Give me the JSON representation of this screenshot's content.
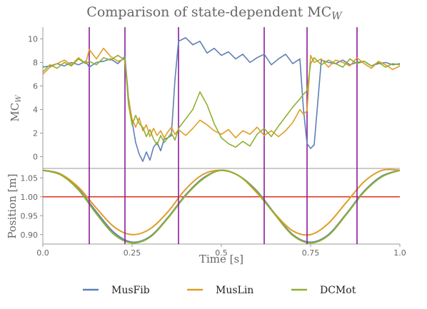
{
  "chart_data": [
    {
      "type": "line",
      "title": "Comparison of state-dependent MC",
      "title_subscript": "W",
      "ylabel": "MC",
      "ylabel_subscript": "W",
      "xlim": [
        0,
        1
      ],
      "ylim": [
        -1,
        11
      ],
      "yticks": [
        "0",
        "2",
        "4",
        "6",
        "8",
        "10"
      ],
      "vlines": [
        0.13,
        0.23,
        0.38,
        0.62,
        0.74,
        0.88
      ],
      "vline_color": "#8B1A9B",
      "series": [
        {
          "name": "MusFib",
          "color": "#5E81B5",
          "x": [
            0.0,
            0.02,
            0.04,
            0.06,
            0.08,
            0.1,
            0.12,
            0.13,
            0.15,
            0.17,
            0.19,
            0.21,
            0.23,
            0.24,
            0.25,
            0.26,
            0.27,
            0.28,
            0.29,
            0.3,
            0.31,
            0.32,
            0.33,
            0.34,
            0.35,
            0.36,
            0.37,
            0.38,
            0.4,
            0.42,
            0.44,
            0.46,
            0.48,
            0.5,
            0.52,
            0.54,
            0.56,
            0.58,
            0.6,
            0.62,
            0.64,
            0.66,
            0.68,
            0.7,
            0.72,
            0.73,
            0.74,
            0.75,
            0.76,
            0.78,
            0.8,
            0.82,
            0.84,
            0.86,
            0.88,
            0.9,
            0.92,
            0.94,
            0.96,
            0.98,
            1.0
          ],
          "y": [
            7.6,
            7.7,
            7.9,
            7.7,
            8.0,
            7.8,
            8.1,
            7.6,
            8.0,
            8.1,
            8.3,
            7.9,
            8.5,
            5.0,
            3.0,
            1.2,
            0.2,
            -0.4,
            0.4,
            -0.3,
            0.8,
            1.2,
            0.5,
            1.5,
            1.6,
            1.8,
            6.5,
            9.8,
            10.1,
            9.5,
            9.8,
            8.8,
            9.2,
            8.6,
            8.9,
            8.3,
            8.7,
            8.0,
            8.4,
            8.7,
            7.8,
            8.3,
            8.7,
            7.9,
            8.3,
            4.0,
            1.1,
            0.7,
            1.0,
            8.2,
            8.0,
            7.9,
            8.2,
            7.8,
            8.0,
            8.1,
            7.7,
            7.9,
            8.0,
            7.8,
            7.9
          ]
        },
        {
          "name": "MusLin",
          "color": "#E19C24",
          "x": [
            0.0,
            0.02,
            0.04,
            0.06,
            0.08,
            0.1,
            0.12,
            0.13,
            0.15,
            0.17,
            0.19,
            0.21,
            0.23,
            0.24,
            0.25,
            0.26,
            0.27,
            0.28,
            0.29,
            0.3,
            0.31,
            0.32,
            0.33,
            0.34,
            0.35,
            0.36,
            0.37,
            0.38,
            0.4,
            0.42,
            0.44,
            0.46,
            0.48,
            0.5,
            0.52,
            0.54,
            0.56,
            0.58,
            0.6,
            0.62,
            0.64,
            0.66,
            0.68,
            0.7,
            0.72,
            0.73,
            0.74,
            0.75,
            0.76,
            0.78,
            0.8,
            0.82,
            0.84,
            0.86,
            0.88,
            0.9,
            0.92,
            0.94,
            0.96,
            0.98,
            1.0
          ],
          "y": [
            7.0,
            7.6,
            7.9,
            8.2,
            7.8,
            8.4,
            7.9,
            9.1,
            8.3,
            9.2,
            8.5,
            8.1,
            8.3,
            4.8,
            3.2,
            2.5,
            3.3,
            2.2,
            2.7,
            1.7,
            2.4,
            1.8,
            2.2,
            1.6,
            2.1,
            2.5,
            1.9,
            2.3,
            1.8,
            2.4,
            3.1,
            2.7,
            2.2,
            1.9,
            2.3,
            1.6,
            2.2,
            1.9,
            2.5,
            1.8,
            2.2,
            1.7,
            2.2,
            2.9,
            4.0,
            3.6,
            3.9,
            8.6,
            8.0,
            8.3,
            7.6,
            8.2,
            8.0,
            7.7,
            8.4,
            7.9,
            7.5,
            8.1,
            7.8,
            7.4,
            7.7
          ]
        },
        {
          "name": "DCMot",
          "color": "#8FB032",
          "x": [
            0.0,
            0.02,
            0.04,
            0.06,
            0.08,
            0.1,
            0.12,
            0.13,
            0.15,
            0.17,
            0.19,
            0.21,
            0.23,
            0.24,
            0.25,
            0.26,
            0.27,
            0.28,
            0.29,
            0.3,
            0.31,
            0.32,
            0.33,
            0.34,
            0.35,
            0.36,
            0.37,
            0.38,
            0.4,
            0.42,
            0.44,
            0.46,
            0.48,
            0.5,
            0.52,
            0.54,
            0.56,
            0.58,
            0.6,
            0.62,
            0.64,
            0.66,
            0.68,
            0.7,
            0.72,
            0.73,
            0.74,
            0.75,
            0.76,
            0.78,
            0.8,
            0.82,
            0.84,
            0.86,
            0.88,
            0.9,
            0.92,
            0.94,
            0.96,
            0.98,
            1.0
          ],
          "y": [
            7.2,
            7.8,
            7.5,
            8.0,
            7.7,
            8.3,
            7.9,
            8.1,
            7.8,
            8.4,
            8.2,
            8.6,
            8.2,
            4.4,
            2.7,
            3.5,
            2.8,
            2.5,
            1.7,
            2.3,
            1.5,
            1.0,
            1.8,
            1.2,
            1.6,
            2.0,
            1.4,
            2.4,
            3.2,
            4.0,
            5.5,
            4.4,
            2.8,
            1.6,
            1.1,
            0.8,
            1.3,
            0.9,
            1.9,
            2.4,
            1.7,
            2.6,
            3.4,
            4.2,
            4.9,
            5.3,
            5.6,
            7.9,
            8.4,
            7.8,
            8.2,
            7.9,
            7.6,
            8.3,
            7.9,
            8.1,
            7.7,
            8.0,
            7.6,
            7.9,
            7.8
          ]
        }
      ]
    },
    {
      "type": "line",
      "xlabel": "Time [s]",
      "ylabel": "Position [m]",
      "xlim": [
        0,
        1
      ],
      "ylim": [
        0.875,
        1.075
      ],
      "xticks": [
        "0.0",
        "0.25",
        "0.5",
        "0.75",
        "1.0"
      ],
      "yticks": [
        "0.90",
        "0.95",
        "1.00",
        "1.05"
      ],
      "hline": 1.0,
      "hline_color": "#E0301E",
      "vlines": [
        0.13,
        0.23,
        0.38,
        0.62,
        0.74,
        0.88
      ],
      "series": [
        {
          "name": "MusFib",
          "color": "#5E81B5",
          "x": [
            0.0,
            0.05,
            0.1,
            0.15,
            0.2,
            0.25,
            0.3,
            0.35,
            0.4,
            0.45,
            0.5,
            0.55,
            0.6,
            0.65,
            0.7,
            0.75,
            0.8,
            0.85,
            0.9,
            0.95,
            1.0
          ],
          "y": [
            1.07,
            1.06,
            1.02,
            0.96,
            0.905,
            0.88,
            0.895,
            0.945,
            1.005,
            1.05,
            1.07,
            1.055,
            1.015,
            0.955,
            0.9,
            0.88,
            0.9,
            0.955,
            1.015,
            1.055,
            1.07
          ]
        },
        {
          "name": "MusLin",
          "color": "#E19C24",
          "x": [
            0.0,
            0.05,
            0.1,
            0.15,
            0.2,
            0.25,
            0.3,
            0.35,
            0.4,
            0.45,
            0.5,
            0.55,
            0.6,
            0.65,
            0.7,
            0.75,
            0.8,
            0.85,
            0.9,
            0.95,
            1.0
          ],
          "y": [
            1.07,
            1.06,
            1.025,
            0.97,
            0.92,
            0.9,
            0.915,
            0.96,
            1.02,
            1.06,
            1.07,
            1.055,
            1.01,
            0.955,
            0.91,
            0.9,
            0.93,
            0.985,
            1.04,
            1.07,
            1.07
          ]
        },
        {
          "name": "DCMot",
          "color": "#8FB032",
          "x": [
            0.0,
            0.05,
            0.1,
            0.15,
            0.2,
            0.25,
            0.3,
            0.35,
            0.4,
            0.45,
            0.5,
            0.55,
            0.6,
            0.65,
            0.7,
            0.75,
            0.8,
            0.85,
            0.9,
            0.95,
            1.0
          ],
          "y": [
            1.07,
            1.058,
            1.018,
            0.955,
            0.9,
            0.878,
            0.893,
            0.943,
            1.003,
            1.048,
            1.07,
            1.055,
            1.013,
            0.953,
            0.898,
            0.878,
            0.898,
            0.953,
            1.013,
            1.053,
            1.07
          ]
        }
      ]
    }
  ],
  "legend": {
    "position": "bottom-center",
    "items": [
      {
        "label": "MusFib",
        "color": "#5E81B5"
      },
      {
        "label": "MusLin",
        "color": "#E19C24"
      },
      {
        "label": "DCMot",
        "color": "#8FB032"
      }
    ]
  }
}
